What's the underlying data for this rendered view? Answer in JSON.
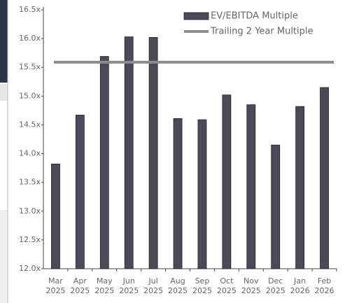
{
  "chart_data": {
    "type": "bar",
    "categories": [
      "Mar 2025",
      "Apr 2025",
      "May 2025",
      "Jun 2025",
      "Jul 2025",
      "Aug 2025",
      "Sep 2025",
      "Oct 2025",
      "Nov 2025",
      "Dec 2025",
      "Jan 2026",
      "Feb 2026"
    ],
    "series": [
      {
        "name": "EV/EBITDA Multiple",
        "color": "#4b4b57",
        "values": [
          13.82,
          14.67,
          15.69,
          16.03,
          16.02,
          14.61,
          14.59,
          15.02,
          14.85,
          14.15,
          14.82,
          15.15
        ]
      },
      {
        "name": "Trailing 2 Year Multiple",
        "color": "#8c8c8c",
        "type": "line",
        "values": [
          15.59,
          15.59,
          15.59,
          15.59,
          15.59,
          15.59,
          15.59,
          15.59,
          15.59,
          15.59,
          15.59,
          15.59
        ]
      }
    ],
    "ylim": [
      12.0,
      16.5
    ],
    "yticks": [
      {
        "value": 12.0,
        "label": "12.0x"
      },
      {
        "value": 12.5,
        "label": "12.5x"
      },
      {
        "value": 13.0,
        "label": "13.0x"
      },
      {
        "value": 13.5,
        "label": "13.5x"
      },
      {
        "value": 14.0,
        "label": "14.0x"
      },
      {
        "value": 14.5,
        "label": "14.5x"
      },
      {
        "value": 15.0,
        "label": "15.0x"
      },
      {
        "value": 15.5,
        "label": "15.5x"
      },
      {
        "value": 16.0,
        "label": "16.0x"
      },
      {
        "value": 16.5,
        "label": "16.5x"
      }
    ],
    "legend": "upper right"
  }
}
